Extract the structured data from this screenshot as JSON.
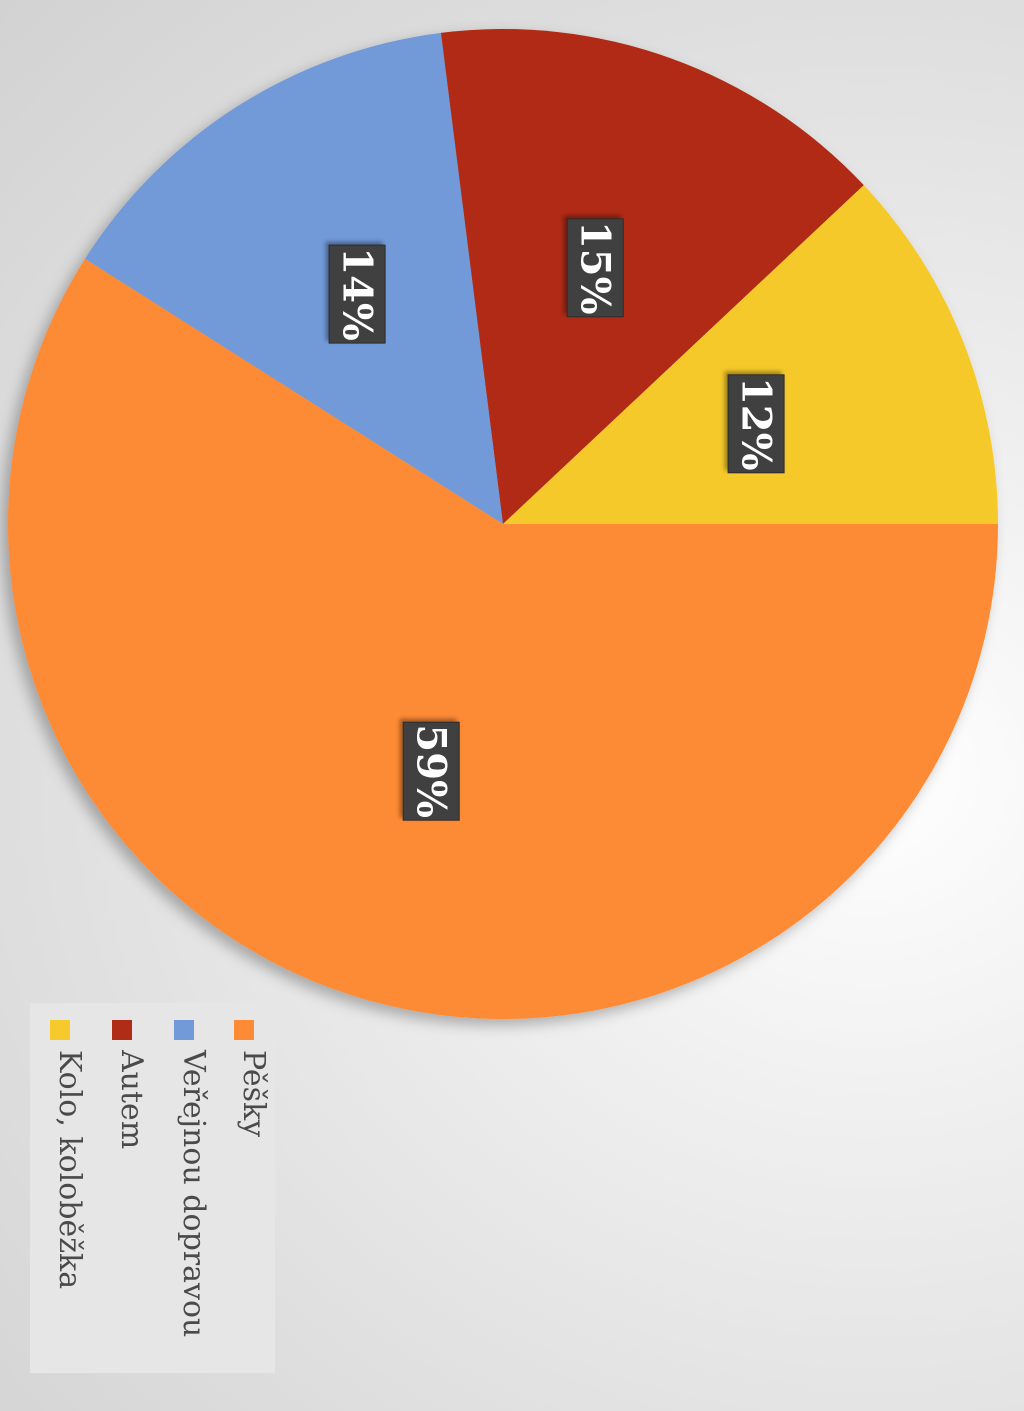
{
  "chart_data": {
    "type": "pie",
    "title": "",
    "categories": [
      "Pěšky",
      "Veřejnou dopravou",
      "Autem",
      "Kolo, koloběžka"
    ],
    "values": [
      59,
      14,
      15,
      12
    ],
    "value_labels": [
      "59%",
      "14%",
      "15%",
      "12%"
    ],
    "colors": [
      "#fd8a34",
      "#729ad9",
      "#b02c17",
      "#f6c92c"
    ],
    "legend": {
      "placement": "bottom-left",
      "entries": [
        "Pěšky",
        "Veřejnou dopravou",
        "Autem",
        "Kolo, koloběžka"
      ]
    },
    "orientation": "rotated 90° clockwise"
  }
}
